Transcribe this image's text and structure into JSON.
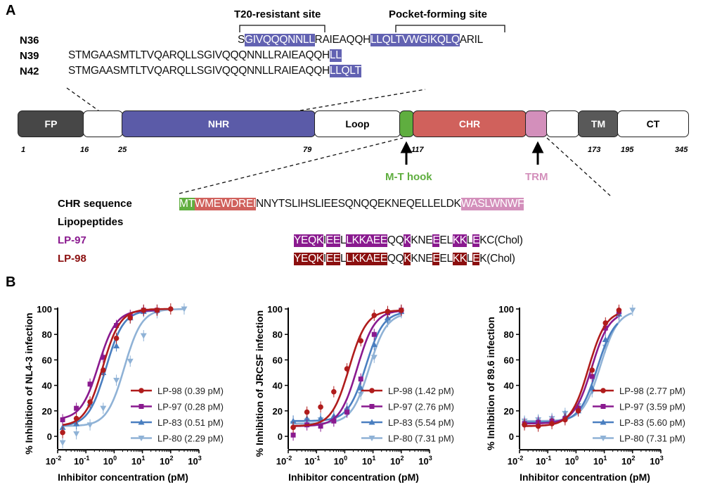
{
  "panel_a": {
    "label": "A",
    "brackets": {
      "t20": "T20-resistant site",
      "pocket": "Pocket-forming site"
    },
    "peptides": [
      {
        "name": "N36",
        "segments": [
          {
            "t": "S",
            "h": false
          },
          {
            "t": "GIVQQQNNLL",
            "h": true
          },
          {
            "t": "RAIEAQQH",
            "h": false
          },
          {
            "t": "LLQLTVWGIKQLQ",
            "h": true
          },
          {
            "t": "ARIL",
            "h": false
          }
        ]
      },
      {
        "name": "N39",
        "segments": [
          {
            "t": "STMGAASMTLTVQARQLLSGIVQQQNNLLRAIEAQQH",
            "h": false
          },
          {
            "t": "LL",
            "h": true
          }
        ]
      },
      {
        "name": "N42",
        "segments": [
          {
            "t": "STMGAASMTLTVQARQLLSGIVQQQNNLLRAIEAQQH",
            "h": false
          },
          {
            "t": "LLQLT",
            "h": true
          }
        ]
      }
    ],
    "domains": [
      {
        "name": "FP",
        "color": "#474747",
        "text": "#fff"
      },
      {
        "name": "",
        "color": "#fff",
        "text": "#000"
      },
      {
        "name": "NHR",
        "color": "#5b5ba8",
        "text": "#fff"
      },
      {
        "name": "Loop",
        "color": "#fff",
        "text": "#000"
      },
      {
        "name": "",
        "color": "#5fae3f",
        "text": "#fff"
      },
      {
        "name": "CHR",
        "color": "#d0615c",
        "text": "#fff"
      },
      {
        "name": "",
        "color": "#d38fbb",
        "text": "#fff"
      },
      {
        "name": "",
        "color": "#fff",
        "text": "#000"
      },
      {
        "name": "TM",
        "color": "#595959",
        "text": "#fff"
      },
      {
        "name": "CT",
        "color": "#fff",
        "text": "#000"
      }
    ],
    "positions": [
      "1",
      "16",
      "25",
      "79",
      "117",
      "173",
      "195",
      "345"
    ],
    "mt_hook": "M-T hook",
    "trm": "TRM",
    "chr_label": "CHR sequence",
    "lipo_label": "Lipopeptides",
    "chr_segments": [
      {
        "t": "MT",
        "c": "#5fae3f"
      },
      {
        "t": "WMEWDREI",
        "c": "#d0615c"
      },
      {
        "t": "NNYTSLIHSLIEESQNQQEKNEQELLELDK",
        "c": ""
      },
      {
        "t": "WASLWNWF",
        "c": "#d38fbb"
      }
    ],
    "lp97": {
      "name": "LP-97",
      "color": "#8a1a8f",
      "segments": [
        {
          "t": "YEQK",
          "h": true
        },
        {
          "t": "I",
          "h": false
        },
        {
          "t": "EE",
          "h": true
        },
        {
          "t": "L",
          "h": false
        },
        {
          "t": "LKKAEE",
          "h": true
        },
        {
          "t": "QQ",
          "h": false
        },
        {
          "t": "K",
          "h": true
        },
        {
          "t": "KNE",
          "h": false
        },
        {
          "t": "E",
          "h": true
        },
        {
          "t": "EL",
          "h": false
        },
        {
          "t": "KK",
          "h": true
        },
        {
          "t": "L",
          "h": false
        },
        {
          "t": "E",
          "h": true
        },
        {
          "t": "KC(Chol)",
          "h": false
        }
      ]
    },
    "lp98": {
      "name": "LP-98",
      "color": "#8b0f0f",
      "segments": [
        {
          "t": "YEQK",
          "h": true
        },
        {
          "t": "I",
          "h": false
        },
        {
          "t": "EE",
          "h": true
        },
        {
          "t": "L",
          "h": false
        },
        {
          "t": "LKKAEE",
          "h": true
        },
        {
          "t": "QQ",
          "h": false
        },
        {
          "t": "K",
          "h": true
        },
        {
          "t": "KNE",
          "h": false
        },
        {
          "t": "E",
          "h": true
        },
        {
          "t": "EL",
          "h": false
        },
        {
          "t": "KK",
          "h": true
        },
        {
          "t": "L",
          "h": false
        },
        {
          "t": "E",
          "h": true
        },
        {
          "t": "K(Chol)",
          "h": false
        }
      ]
    }
  },
  "panel_b": {
    "label": "B"
  },
  "chart_data": [
    {
      "type": "line",
      "ylabel": "% Inhibition of NL4-3 infection",
      "xlabel": "Inhibitor concentration (pM)",
      "xscale": "log",
      "xlim": [
        0.01,
        1000
      ],
      "ylim": [
        -10,
        100
      ],
      "xticks": [
        "10",
        "10",
        "10",
        "10",
        "10",
        "10"
      ],
      "xtick_exps": [
        "-2",
        "-1",
        "0",
        "1",
        "2",
        "3"
      ],
      "yticks": [
        "0",
        "20",
        "40",
        "60",
        "80",
        "100"
      ],
      "legend": "bottom-right",
      "series": [
        {
          "name": "LP-98 (0.39 pM)",
          "color": "#b01c1c",
          "marker": "circle",
          "ic50": 0.39,
          "x": [
            0.015,
            0.046,
            0.14,
            0.41,
            1.2,
            3.7,
            11,
            33,
            100
          ],
          "y": [
            3,
            14,
            27,
            52,
            77,
            93,
            99,
            99,
            100
          ]
        },
        {
          "name": "LP-97 (0.28 pM)",
          "color": "#8a1a8f",
          "marker": "square",
          "ic50": 0.28,
          "x": [
            0.015,
            0.046,
            0.14,
            0.41,
            1.2,
            3.7,
            11,
            33
          ],
          "y": [
            13,
            22,
            41,
            62,
            87,
            95,
            99,
            99
          ]
        },
        {
          "name": "LP-83 (0.51 pM)",
          "color": "#4a7fc0",
          "marker": "triangle-up",
          "ic50": 0.51,
          "x": [
            0.015,
            0.046,
            0.14,
            0.41,
            1.2,
            3.7,
            11,
            33
          ],
          "y": [
            7,
            10,
            26,
            50,
            71,
            93,
            98,
            99
          ]
        },
        {
          "name": "LP-80 (2.29 pM)",
          "color": "#8fb2d6",
          "marker": "triangle-down",
          "ic50": 2.29,
          "x": [
            0.015,
            0.046,
            0.14,
            0.41,
            1.2,
            3.7,
            11,
            33,
            300
          ],
          "y": [
            -5,
            2,
            9,
            22,
            44,
            59,
            79,
            97,
            100
          ]
        }
      ]
    },
    {
      "type": "line",
      "ylabel": "% Inhibition of JRCSF infection",
      "xlabel": "Inhibitor concentration (pM)",
      "xscale": "log",
      "xlim": [
        0.01,
        1000
      ],
      "ylim": [
        -10,
        100
      ],
      "xticks": [
        "10",
        "10",
        "10",
        "10",
        "10",
        "10"
      ],
      "xtick_exps": [
        "-2",
        "-1",
        "0",
        "1",
        "2",
        "3"
      ],
      "yticks": [
        "0",
        "20",
        "40",
        "60",
        "80",
        "100"
      ],
      "legend": "bottom-right",
      "series": [
        {
          "name": "LP-98 (1.42 pM)",
          "color": "#b01c1c",
          "marker": "circle",
          "ic50": 1.42,
          "x": [
            0.015,
            0.046,
            0.14,
            0.41,
            1.2,
            3.7,
            11,
            33,
            100
          ],
          "y": [
            7,
            19,
            23,
            35,
            53,
            75,
            95,
            98,
            99
          ]
        },
        {
          "name": "LP-97 (2.76 pM)",
          "color": "#8a1a8f",
          "marker": "square",
          "ic50": 2.76,
          "x": [
            0.015,
            0.046,
            0.14,
            0.41,
            1.2,
            3.7,
            11,
            33,
            100
          ],
          "y": [
            1,
            9,
            8,
            12,
            19,
            45,
            80,
            97,
            99
          ]
        },
        {
          "name": "LP-83 (5.54 pM)",
          "color": "#4a7fc0",
          "marker": "triangle-up",
          "ic50": 5.54,
          "x": [
            0.015,
            0.046,
            0.14,
            0.41,
            1.2,
            3.7,
            11,
            33,
            100
          ],
          "y": [
            12,
            14,
            14,
            16,
            22,
            38,
            72,
            93,
            98
          ]
        },
        {
          "name": "LP-80 (7.31 pM)",
          "color": "#8fb2d6",
          "marker": "triangle-down",
          "ic50": 7.31,
          "x": [
            0.015,
            0.046,
            0.14,
            0.41,
            1.2,
            3.7,
            11,
            33,
            100
          ],
          "y": [
            10,
            12,
            13,
            12,
            20,
            33,
            62,
            90,
            97
          ]
        }
      ]
    },
    {
      "type": "line",
      "ylabel": "% Inhibition of 89.6 infection",
      "xlabel": "Inhibitor concentration (pM)",
      "xscale": "log",
      "xlim": [
        0.01,
        1000
      ],
      "ylim": [
        -10,
        100
      ],
      "xticks": [
        "10",
        "10",
        "10",
        "10",
        "10",
        "10"
      ],
      "xtick_exps": [
        "-2",
        "-1",
        "0",
        "1",
        "2",
        "3"
      ],
      "yticks": [
        "0",
        "20",
        "40",
        "60",
        "80",
        "100"
      ],
      "legend": "bottom-right",
      "series": [
        {
          "name": "LP-98 (2.77 pM)",
          "color": "#b01c1c",
          "marker": "circle",
          "ic50": 2.77,
          "x": [
            0.015,
            0.046,
            0.14,
            0.41,
            1.2,
            3.7,
            11,
            33
          ],
          "y": [
            9,
            8,
            10,
            13,
            20,
            52,
            89,
            99
          ]
        },
        {
          "name": "LP-97 (3.59 pM)",
          "color": "#8a1a8f",
          "marker": "square",
          "ic50": 3.59,
          "x": [
            0.015,
            0.046,
            0.14,
            0.41,
            1.2,
            3.7,
            11,
            33
          ],
          "y": [
            10,
            11,
            12,
            14,
            22,
            47,
            85,
            98
          ]
        },
        {
          "name": "LP-83 (5.60 pM)",
          "color": "#4a7fc0",
          "marker": "triangle-up",
          "ic50": 5.6,
          "x": [
            0.015,
            0.046,
            0.14,
            0.41,
            1.2,
            3.7,
            11,
            33
          ],
          "y": [
            11,
            12,
            13,
            16,
            20,
            38,
            76,
            96
          ]
        },
        {
          "name": "LP-80 (7.31 pM)",
          "color": "#8fb2d6",
          "marker": "triangle-down",
          "ic50": 7.31,
          "x": [
            0.015,
            0.046,
            0.14,
            0.41,
            1.2,
            3.7,
            11,
            33,
            100
          ],
          "y": [
            12,
            13,
            14,
            18,
            24,
            35,
            70,
            95,
            99
          ]
        }
      ]
    }
  ]
}
